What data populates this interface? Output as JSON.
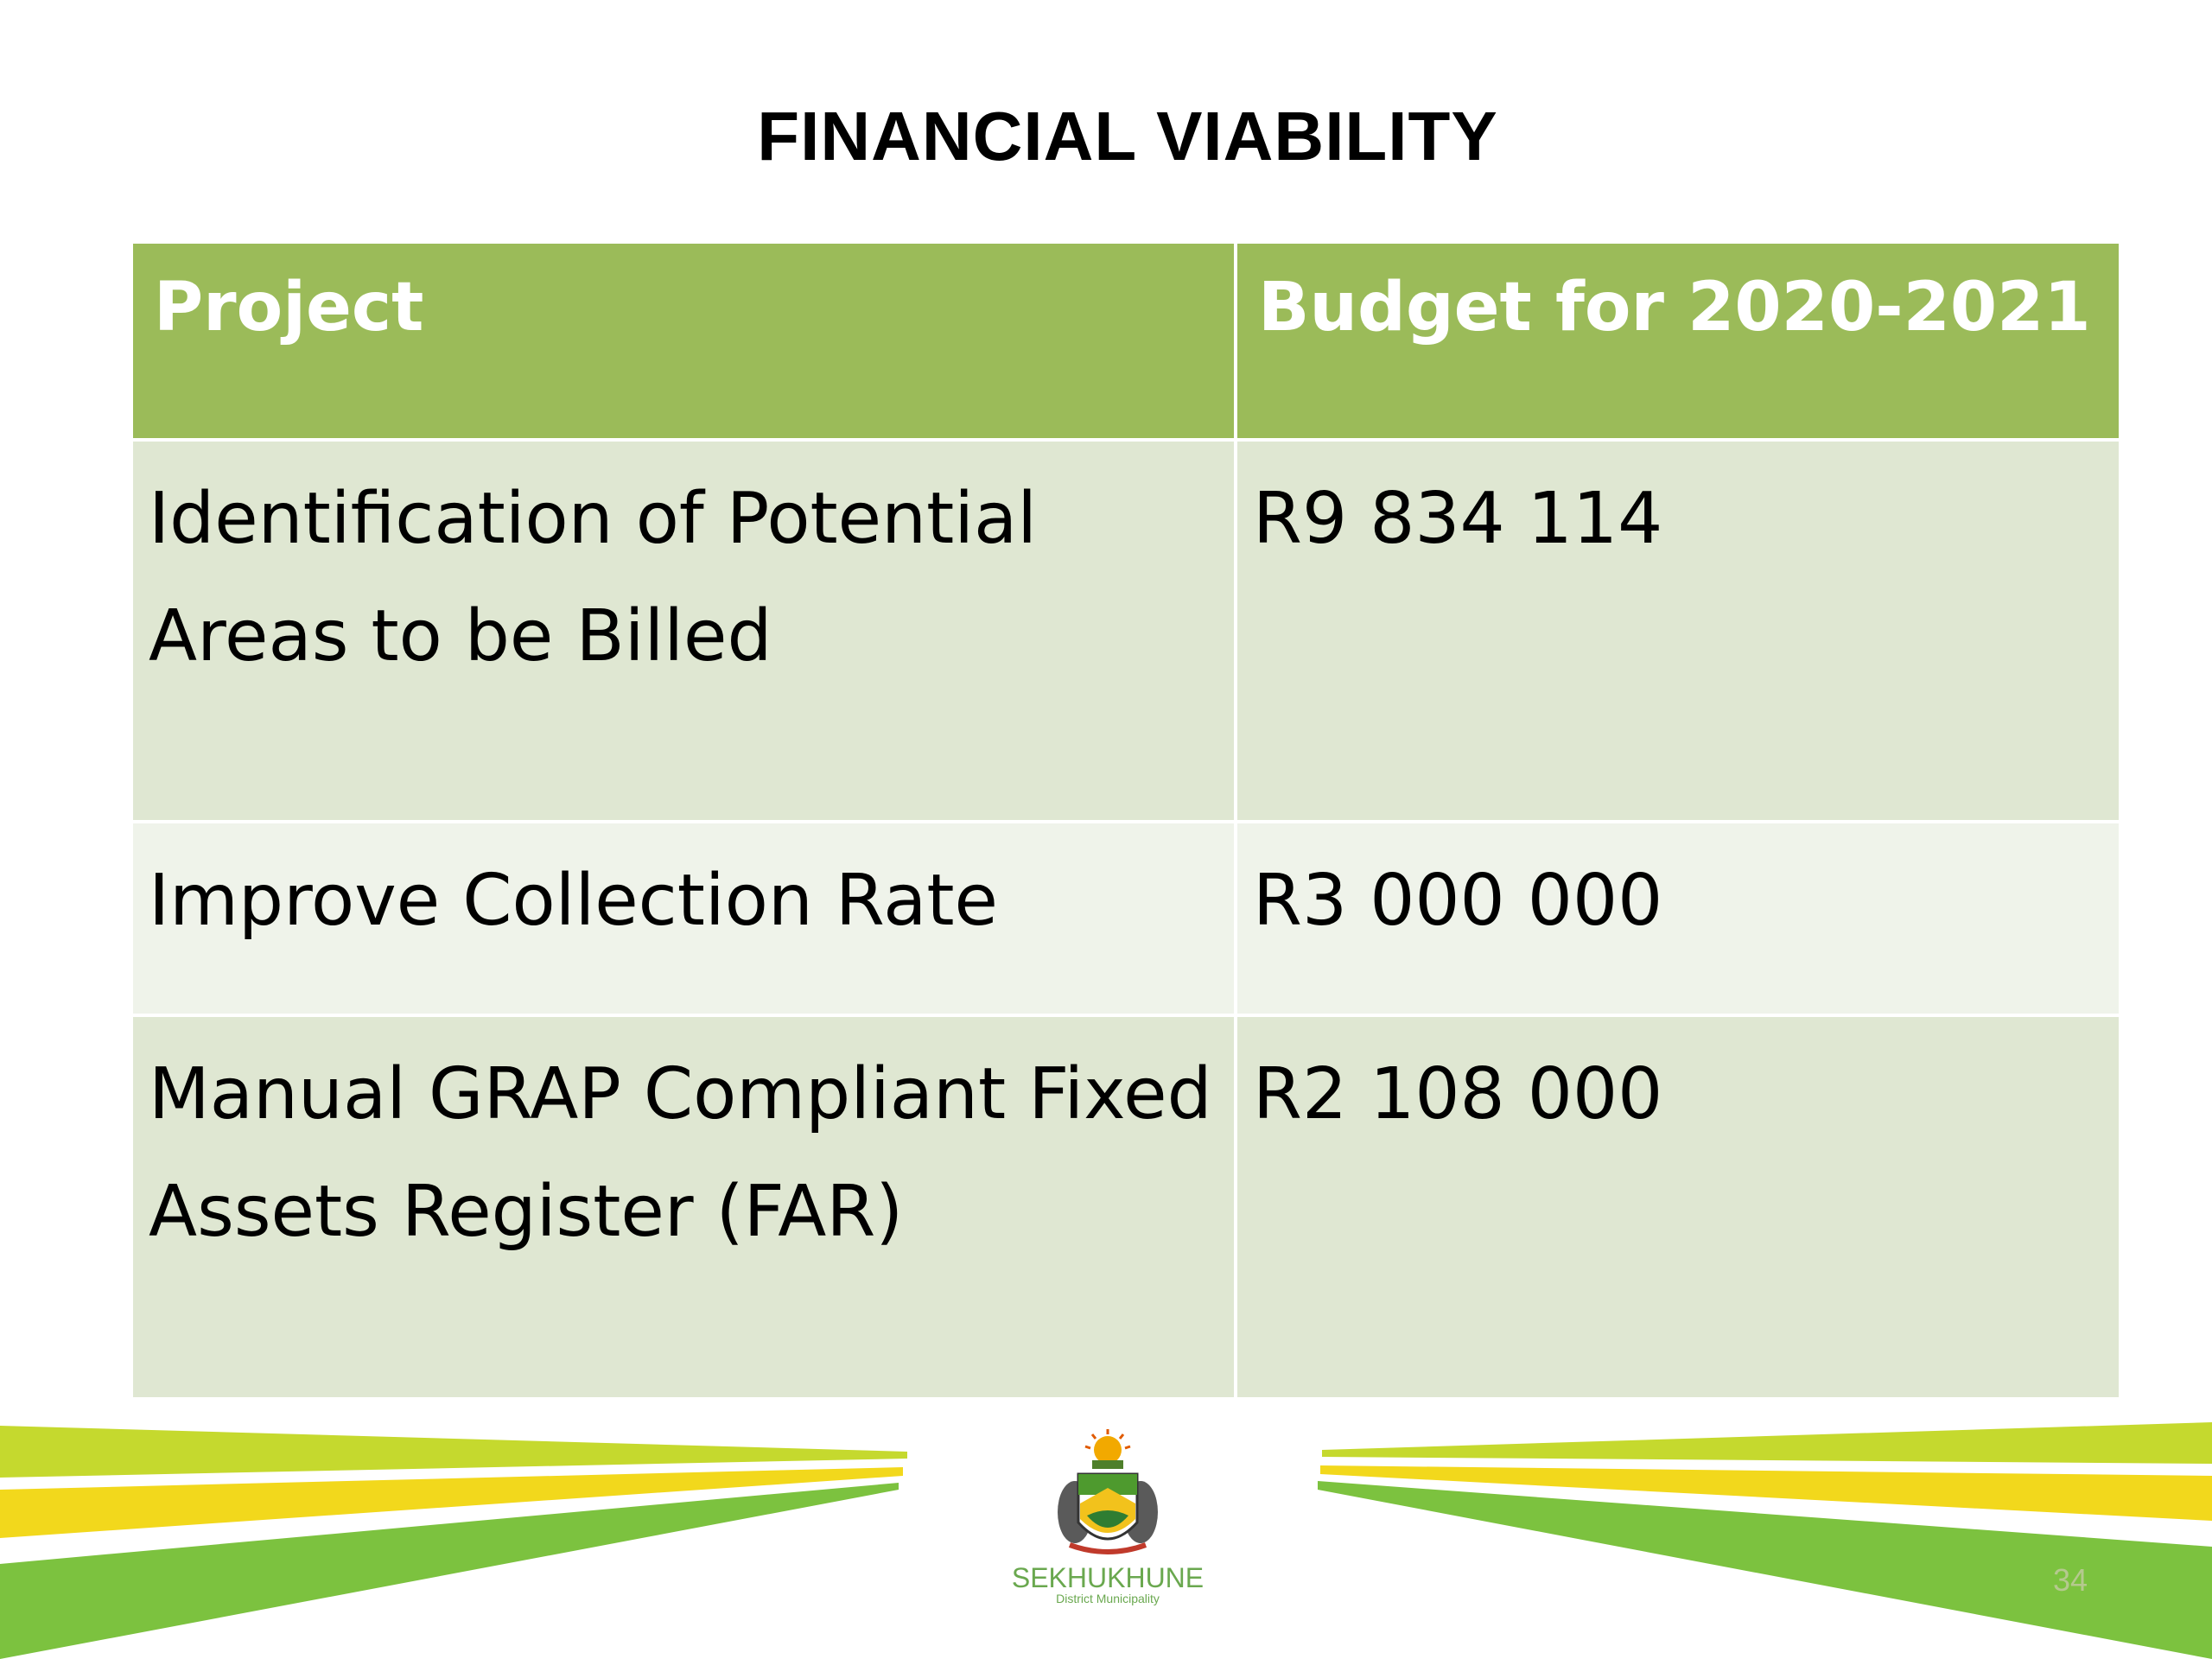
{
  "slide": {
    "title": "FINANCIAL VIABILITY",
    "page_number": "34"
  },
  "table": {
    "headers": {
      "project": "Project",
      "budget": "Budget for 2020-2021"
    },
    "rows": [
      {
        "project_line1": "Identification of Potential",
        "project_line2": "Areas to be Billed",
        "budget": "R9 834 114"
      },
      {
        "project_line1": "Improve Collection Rate",
        "project_line2": "",
        "budget": "R3 000 000"
      },
      {
        "project_line1": "Manual GRAP Compliant Fixed",
        "project_line2": "Assets Register (FAR)",
        "budget": "R2 108 000"
      }
    ]
  },
  "logo": {
    "name": "SEKHUKHUNE",
    "subtitle": "District Municipality",
    "icon": "municipal-coat-of-arms"
  },
  "colors": {
    "header_green": "#9bbb59",
    "row_dark": "#dfe7d2",
    "row_light": "#eff3ea",
    "stripe_lime": "#c5d92e",
    "stripe_yellow": "#f2d81c",
    "stripe_green": "#7cc23f"
  }
}
